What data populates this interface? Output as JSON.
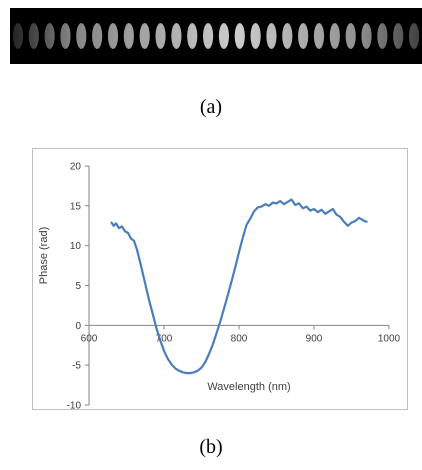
{
  "figure": {
    "caption_a": "(a)",
    "caption_b": "(b)"
  },
  "fringe_pattern": {
    "periods": 26,
    "colors": {
      "background": "#000000",
      "fringe": "#ffffff"
    }
  },
  "chart_data": {
    "type": "line",
    "title": "",
    "xlabel": "Wavelength (nm)",
    "ylabel": "Phase (rad)",
    "xlim": [
      600,
      1000
    ],
    "ylim": [
      -10,
      20
    ],
    "xticks": [
      600,
      700,
      800,
      900,
      1000
    ],
    "yticks": [
      -10,
      -5,
      0,
      5,
      10,
      15,
      20
    ],
    "xtick_labels": [
      "600",
      "700",
      "800",
      "900",
      "1000"
    ],
    "ytick_labels": [
      "-10",
      "-5",
      "0",
      "5",
      "10",
      "15",
      "20"
    ],
    "grid": false,
    "legend": "none",
    "line_color": "#4a7ebb",
    "series": [
      {
        "x": [
          630,
          633,
          636,
          640,
          644,
          648,
          652,
          656,
          660,
          664,
          668,
          672,
          676,
          680,
          685,
          690,
          695,
          700,
          705,
          710,
          715,
          720,
          725,
          730,
          735,
          740,
          745,
          750,
          755,
          760,
          765,
          770,
          775,
          780,
          785,
          790,
          795,
          800,
          805,
          810,
          815,
          820,
          825,
          830,
          835,
          840,
          845,
          850,
          855,
          860,
          865,
          870,
          875,
          880,
          885,
          890,
          895,
          900,
          905,
          910,
          915,
          920,
          925,
          930,
          935,
          940,
          945,
          950,
          955,
          960,
          965,
          970
        ],
        "y": [
          12.9,
          12.5,
          12.8,
          12.2,
          12.4,
          11.8,
          11.6,
          10.9,
          10.6,
          9.5,
          8.0,
          6.4,
          4.8,
          3.2,
          1.4,
          -0.4,
          -1.9,
          -3.2,
          -4.2,
          -4.9,
          -5.4,
          -5.7,
          -5.9,
          -6.0,
          -6.0,
          -5.9,
          -5.7,
          -5.3,
          -4.6,
          -3.6,
          -2.4,
          -1.0,
          0.5,
          2.1,
          3.8,
          5.5,
          7.3,
          9.2,
          11.0,
          12.6,
          13.4,
          14.3,
          14.8,
          14.9,
          15.2,
          15.0,
          15.4,
          15.3,
          15.6,
          15.2,
          15.5,
          15.8,
          15.1,
          15.3,
          14.7,
          14.9,
          14.4,
          14.6,
          14.2,
          14.5,
          14.0,
          14.3,
          14.6,
          13.9,
          13.6,
          13.0,
          12.5,
          12.9,
          13.1,
          13.5,
          13.2,
          13.0
        ]
      }
    ]
  }
}
